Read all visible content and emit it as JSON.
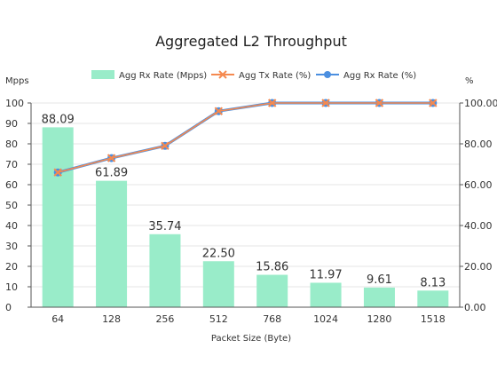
{
  "chart_data": {
    "type": "bar+line",
    "title": "Aggregated L2 Throughput",
    "xlabel": "Packet Size (Byte)",
    "ylabel_left": "Mpps",
    "ylabel_right": "%",
    "categories": [
      "64",
      "128",
      "256",
      "512",
      "768",
      "1024",
      "1280",
      "1518"
    ],
    "ylim_left": [
      0,
      100
    ],
    "ylim_right": [
      0,
      100
    ],
    "yticks_left": [
      "0",
      "10",
      "20",
      "30",
      "40",
      "50",
      "60",
      "70",
      "80",
      "90",
      "100"
    ],
    "yticks_right": [
      "0.00",
      "20.00",
      "40.00",
      "60.00",
      "80.00",
      "100.00"
    ],
    "series": [
      {
        "name": "Agg Rx Rate (Mpps)",
        "kind": "bar",
        "axis": "left",
        "color": "#99ecc9",
        "values": [
          88.09,
          61.89,
          35.74,
          22.5,
          15.86,
          11.97,
          9.61,
          8.13
        ],
        "labels": [
          "88.09",
          "61.89",
          "35.74",
          "22.50",
          "15.86",
          "11.97",
          "9.61",
          "8.13"
        ]
      },
      {
        "name": "Agg Tx Rate (%)",
        "kind": "line",
        "marker": "x",
        "axis": "right",
        "color": "#f5894f",
        "values": [
          66,
          73,
          79,
          96,
          100,
          100,
          100,
          100
        ]
      },
      {
        "name": "Agg Rx Rate (%)",
        "kind": "line",
        "marker": "circle",
        "axis": "right",
        "color": "#4b8fe0",
        "values": [
          66,
          73,
          79,
          96,
          100,
          100,
          100,
          100
        ]
      }
    ],
    "grid": "horizontal",
    "legend_position": "top"
  }
}
